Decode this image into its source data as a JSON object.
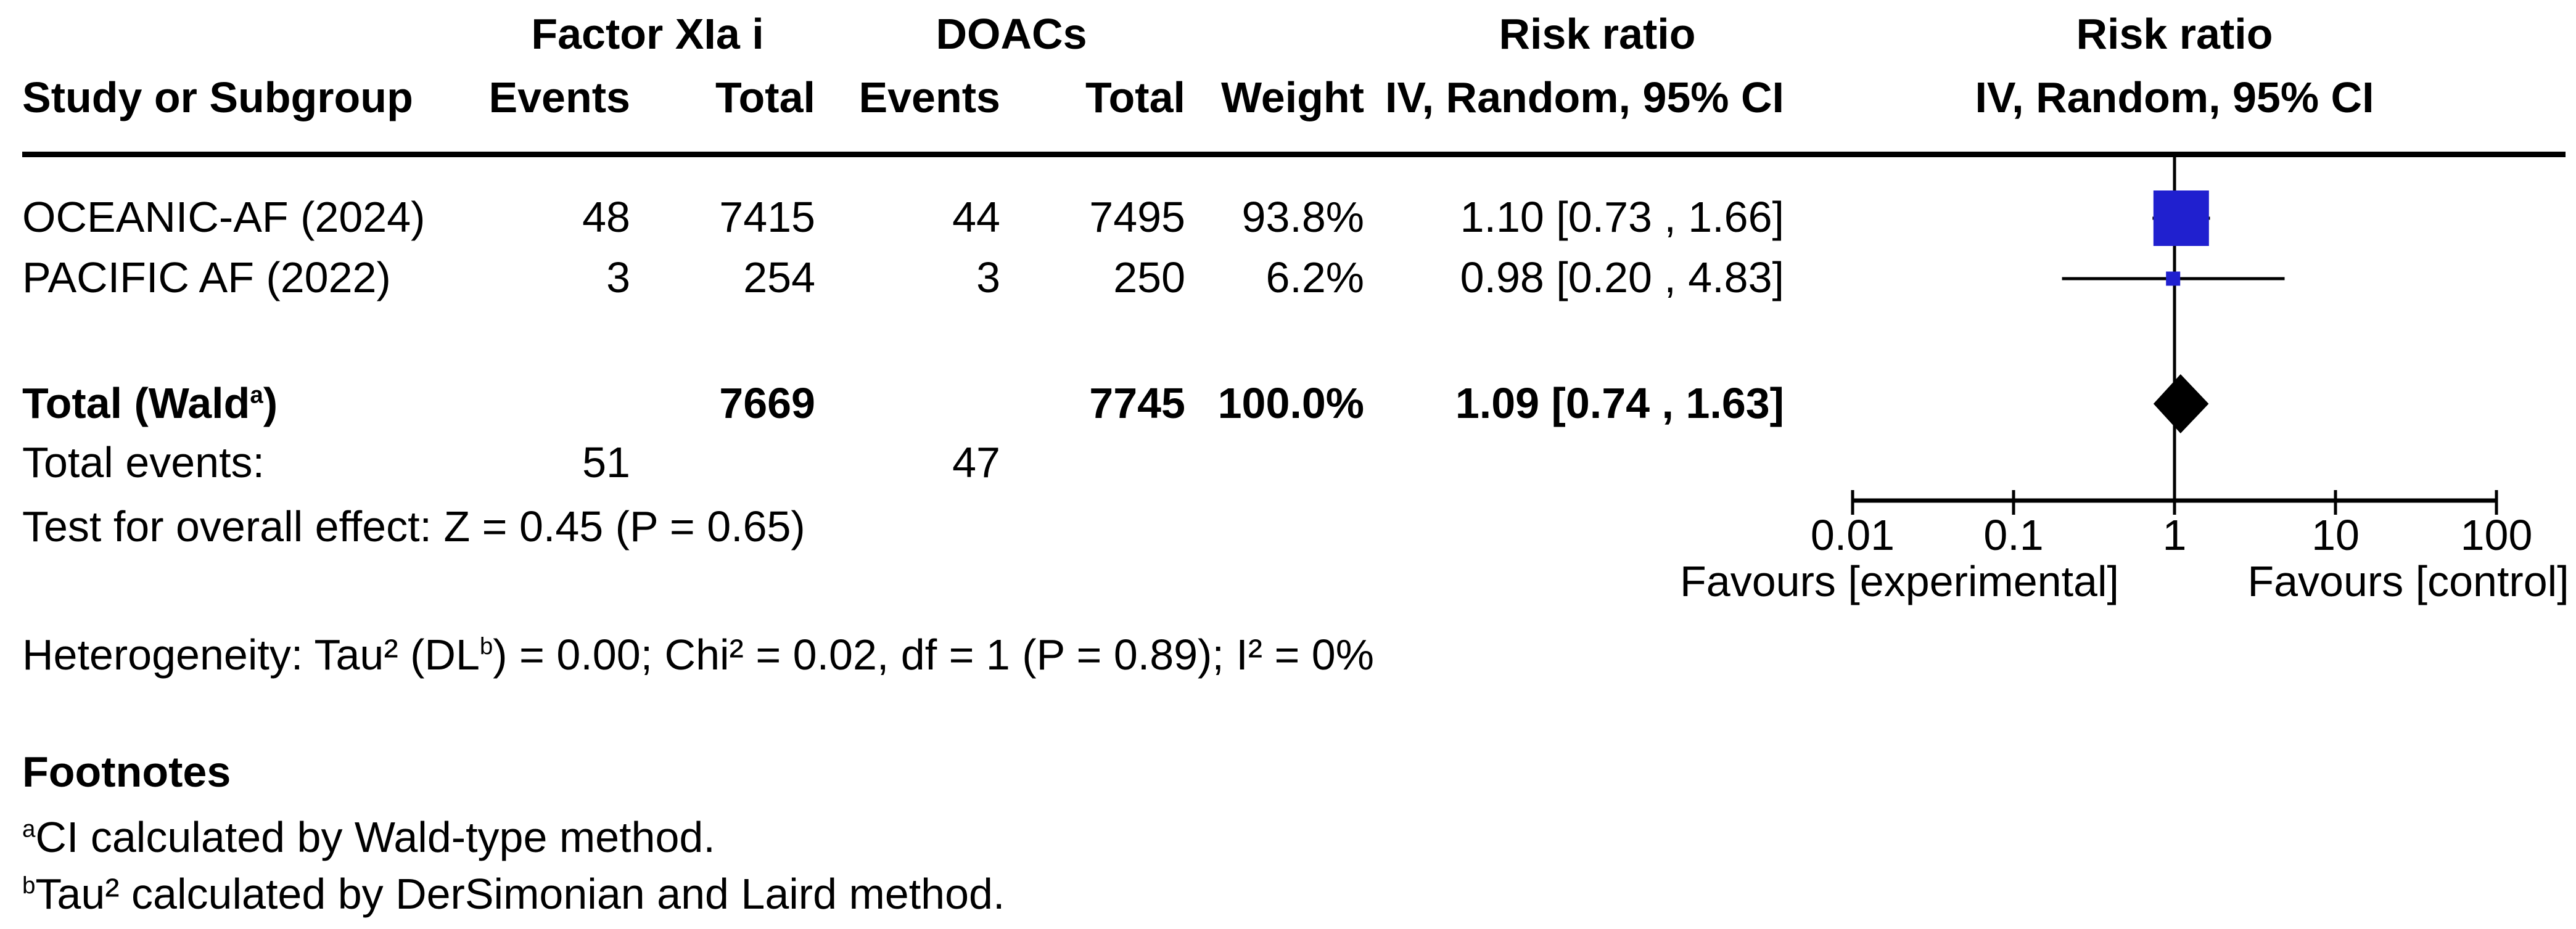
{
  "header": {
    "group_experimental": "Factor XIa i",
    "group_control": "DOACs",
    "risk_ratio_text_col": "Risk ratio",
    "risk_ratio_plot_col": "Risk ratio",
    "study": "Study or Subgroup",
    "events_exp": "Events",
    "total_exp": "Total",
    "events_ctl": "Events",
    "total_ctl": "Total",
    "weight": "Weight",
    "method_text_col": "IV, Random, 95% CI",
    "method_plot_col": "IV, Random, 95% CI"
  },
  "rows": [
    {
      "study": "OCEANIC-AF (2024)",
      "exp_events": "48",
      "exp_total": "7415",
      "ctl_events": "44",
      "ctl_total": "7495",
      "weight": "93.8%",
      "rr_text": "1.10 [0.73 , 1.66]"
    },
    {
      "study": "PACIFIC AF (2022)",
      "exp_events": "3",
      "exp_total": "254",
      "ctl_events": "3",
      "ctl_total": "250",
      "weight": "6.2%",
      "rr_text": "0.98 [0.20 , 4.83]"
    }
  ],
  "total_row": {
    "label_pre": "Total (Wald",
    "label_sup": "a",
    "label_post": ")",
    "exp_total": "7669",
    "ctl_total": "7745",
    "weight": "100.0%",
    "rr_text": "1.09 [0.74 , 1.63]"
  },
  "total_events": {
    "label": "Total events:",
    "exp": "51",
    "ctl": "47"
  },
  "overall_effect": "Test for overall effect: Z = 0.45 (P = 0.65)",
  "heterogeneity": {
    "pre": "Heterogeneity: Tau² (DL",
    "sup": "b",
    "post": ") = 0.00; Chi² = 0.02, df = 1 (P = 0.89); I² = 0%"
  },
  "axis": {
    "ticks": [
      "0.01",
      "0.1",
      "1",
      "10",
      "100"
    ],
    "favours_left": "Favours [experimental]",
    "favours_right": "Favours [control]"
  },
  "footnotes": {
    "title": "Footnotes",
    "items": [
      {
        "marker": "a",
        "text": "CI calculated by Wald-type method."
      },
      {
        "marker": "b",
        "text": "Tau² calculated by DerSimonian and Laird method."
      }
    ]
  },
  "colors": {
    "marker_blue": "#2020cf",
    "ink": "#000000"
  },
  "chart_data": {
    "type": "scatter",
    "subtype": "forest-plot",
    "title": "Risk ratio IV, Random, 95% CI",
    "x_scale": "log10",
    "x_ticks": [
      0.01,
      0.1,
      1,
      10,
      100
    ],
    "xlim": [
      0.01,
      100
    ],
    "null_line": 1,
    "series": [
      {
        "name": "OCEANIC-AF (2024)",
        "rr": 1.1,
        "ci_low": 0.73,
        "ci_high": 1.66,
        "weight_pct": 93.8
      },
      {
        "name": "PACIFIC AF (2022)",
        "rr": 0.98,
        "ci_low": 0.2,
        "ci_high": 4.83,
        "weight_pct": 6.2
      }
    ],
    "total": {
      "name": "Total (Wald)",
      "rr": 1.09,
      "ci_low": 0.74,
      "ci_high": 1.63,
      "weight_pct": 100.0
    },
    "xlabel_left": "Favours [experimental]",
    "xlabel_right": "Favours [control]"
  }
}
